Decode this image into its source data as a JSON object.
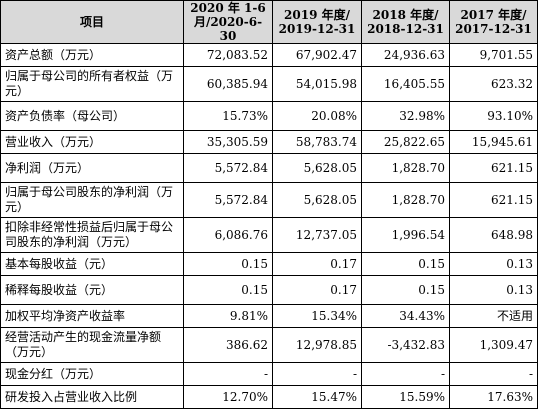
{
  "table": {
    "headers": [
      "项目",
      "2020 年 1-6 月/2020-6-30",
      "2019 年度/ 2019-12-31",
      "2018 年度/ 2018-12-31",
      "2017 年度/ 2017-12-31"
    ],
    "rows": [
      {
        "label": "资产总额（万元）",
        "values": [
          "72,083.52",
          "67,902.47",
          "24,936.63",
          "9,701.55"
        ]
      },
      {
        "label": "归属于母公司的所有者权益（万元）",
        "values": [
          "60,385.94",
          "54,015.98",
          "16,405.55",
          "623.32"
        ]
      },
      {
        "label": "资产负债率（母公司）",
        "values": [
          "15.73%",
          "20.08%",
          "32.98%",
          "93.10%"
        ]
      },
      {
        "label": "营业收入（万元）",
        "values": [
          "35,305.59",
          "58,783.74",
          "25,822.65",
          "15,945.61"
        ]
      },
      {
        "label": "净利润（万元）",
        "values": [
          "5,572.84",
          "5,628.05",
          "1,828.70",
          "621.15"
        ]
      },
      {
        "label": "归属于母公司股东的净利润（万元）",
        "values": [
          "5,572.84",
          "5,628.05",
          "1,828.70",
          "621.15"
        ]
      },
      {
        "label": "扣除非经常性损益后归属于母公司股东的净利润（万元）",
        "values": [
          "6,086.76",
          "12,737.05",
          "1,996.54",
          "648.98"
        ]
      },
      {
        "label": "基本每股收益（元）",
        "values": [
          "0.15",
          "0.17",
          "0.15",
          "0.13"
        ]
      },
      {
        "label": "稀释每股收益（元）",
        "values": [
          "0.15",
          "0.17",
          "0.15",
          "0.13"
        ]
      },
      {
        "label": "加权平均净资产收益率",
        "values": [
          "9.81%",
          "15.34%",
          "34.43%",
          "不适用"
        ]
      },
      {
        "label": "经营活动产生的现金流量净额（万元）",
        "values": [
          "386.62",
          "12,978.85",
          "-3,432.83",
          "1,309.47"
        ]
      },
      {
        "label": "现金分红（万元）",
        "values": [
          "-",
          "-",
          "-",
          "-"
        ]
      },
      {
        "label": "研发投入占营业收入比例",
        "values": [
          "12.70%",
          "15.47%",
          "15.59%",
          "17.63%"
        ]
      }
    ]
  },
  "colors": {
    "header_bg": "#d9d9d9",
    "border": "#000000",
    "text": "#000000"
  }
}
